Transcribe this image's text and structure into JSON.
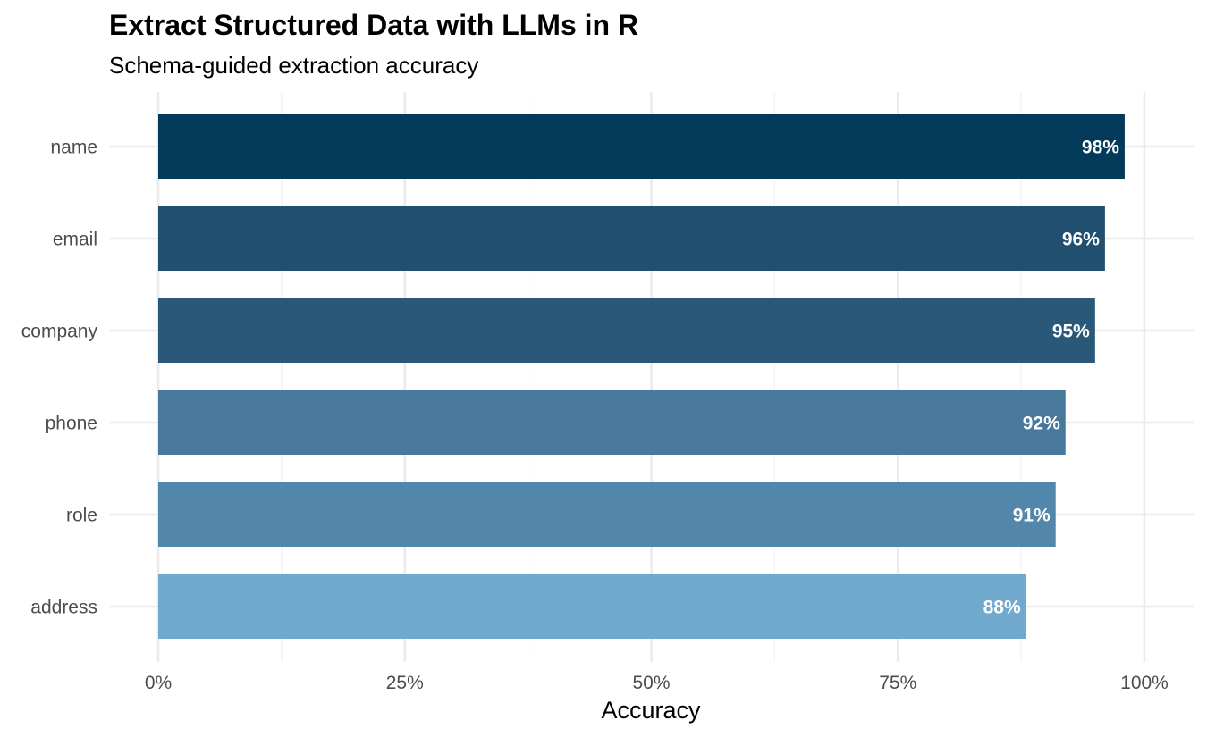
{
  "chart_data": {
    "type": "bar",
    "orientation": "horizontal",
    "title": "Extract Structured Data with LLMs in R",
    "subtitle": "Schema-guided extraction accuracy",
    "xlabel": "Accuracy",
    "ylabel": "",
    "categories": [
      "name",
      "email",
      "company",
      "phone",
      "role",
      "address"
    ],
    "values": [
      0.98,
      0.96,
      0.95,
      0.92,
      0.91,
      0.88
    ],
    "data_labels": [
      "98%",
      "96%",
      "95%",
      "92%",
      "91%",
      "88%"
    ],
    "bar_colors": [
      "#033a59",
      "#204f6f",
      "#2a5878",
      "#48789c",
      "#5386ab",
      "#71a8cd"
    ],
    "xlim": [
      0,
      1
    ],
    "x_ticks": [
      0,
      0.25,
      0.5,
      0.75,
      1.0
    ],
    "x_tick_labels": [
      "0%",
      "25%",
      "50%",
      "75%",
      "100%"
    ],
    "grid": true,
    "legend": "none"
  }
}
